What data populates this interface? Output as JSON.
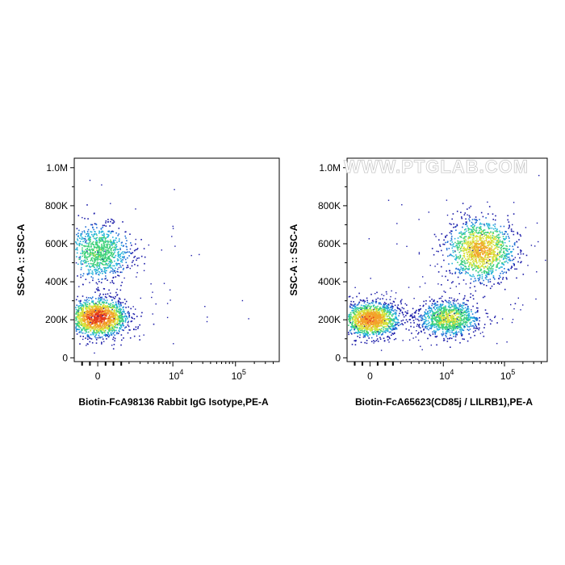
{
  "watermark": "WWW.PTGLAB.COM",
  "colors": {
    "density": [
      "#1a1aa8",
      "#1f6fd6",
      "#24b3d9",
      "#3fd17a",
      "#d8e23a",
      "#f3a22a",
      "#e43b1f"
    ],
    "axis": "#000000"
  },
  "chart_data": [
    {
      "type": "scatter",
      "title": "",
      "xlabel": "Biotin-FcA98136 Rabbit IgG Isotype,PE-A",
      "ylabel": "SSC-A :: SSC-A",
      "xscale": "biexponential",
      "xlim": [
        -1500,
        500000
      ],
      "ylim": [
        -20000,
        1050000
      ],
      "x_ticks": [
        {
          "value": 0,
          "base": "0",
          "exp": ""
        },
        {
          "value": 10000,
          "base": "10",
          "exp": "4"
        },
        {
          "value": 100000,
          "base": "10",
          "exp": "5"
        }
      ],
      "y_ticks": [
        {
          "value": 0,
          "label": "0"
        },
        {
          "value": 200000,
          "label": "200K"
        },
        {
          "value": 400000,
          "label": "400K"
        },
        {
          "value": 600000,
          "label": "600K"
        },
        {
          "value": 800000,
          "label": "800K"
        },
        {
          "value": 1000000,
          "label": "1.0M"
        }
      ],
      "populations": [
        {
          "center_x": 0,
          "center_y": 215000,
          "spread_y": 50000,
          "relative_density": 1.0
        },
        {
          "center_x": 0,
          "center_y": 560000,
          "spread_y": 70000,
          "relative_density": 0.55
        }
      ]
    },
    {
      "type": "scatter",
      "title": "",
      "xlabel": "Biotin-FcA65623(CD85j / LILRB1),PE-A",
      "ylabel": "SSC-A :: SSC-A",
      "xscale": "biexponential",
      "xlim": [
        -1500,
        500000
      ],
      "ylim": [
        -20000,
        1050000
      ],
      "x_ticks": [
        {
          "value": 0,
          "base": "0",
          "exp": ""
        },
        {
          "value": 10000,
          "base": "10",
          "exp": "4"
        },
        {
          "value": 100000,
          "base": "10",
          "exp": "5"
        }
      ],
      "y_ticks": [
        {
          "value": 0,
          "label": "0"
        },
        {
          "value": 200000,
          "label": "200K"
        },
        {
          "value": 400000,
          "label": "400K"
        },
        {
          "value": 600000,
          "label": "600K"
        },
        {
          "value": 800000,
          "label": "800K"
        },
        {
          "value": 1000000,
          "label": "1.0M"
        }
      ],
      "populations": [
        {
          "center_x": 0,
          "center_y": 205000,
          "spread_y": 45000,
          "relative_density": 0.9
        },
        {
          "center_x": 12000,
          "center_y": 210000,
          "spread_y": 45000,
          "relative_density": 0.65
        },
        {
          "center_x": 40000,
          "center_y": 570000,
          "spread_y": 80000,
          "relative_density": 0.8
        }
      ]
    }
  ]
}
